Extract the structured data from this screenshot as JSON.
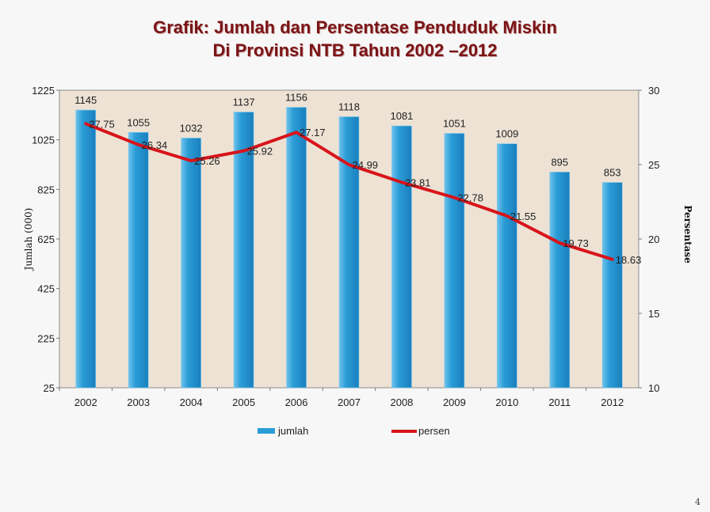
{
  "chart_data": {
    "type": "bar",
    "title_lines": [
      "Grafik: Jumlah dan Persentase  Penduduk Miskin",
      "Di Provinsi NTB Tahun 2002 –2012"
    ],
    "categories": [
      "2002",
      "2003",
      "2004",
      "2005",
      "2006",
      "2007",
      "2008",
      "2009",
      "2010",
      "2011",
      "2012"
    ],
    "series": [
      {
        "name": "jumlah",
        "type": "bar",
        "axis": "left",
        "values": [
          1145,
          1055,
          1032,
          1137,
          1156,
          1118,
          1081,
          1051,
          1009,
          895,
          853
        ],
        "labels": [
          "1145",
          "1055",
          "1032",
          "1137",
          "1156",
          "1118",
          "1081",
          "1051",
          "1009",
          "895",
          "853"
        ]
      },
      {
        "name": "persen",
        "type": "line",
        "axis": "right",
        "values": [
          27.75,
          26.34,
          25.26,
          25.92,
          27.17,
          24.99,
          23.81,
          22.78,
          21.55,
          19.73,
          18.63
        ],
        "labels": [
          "27.75",
          "26.34",
          "25.26",
          "25.92",
          "27.17",
          "24.99",
          "23.81",
          "22.78",
          "21.55",
          "19.73",
          "18.63"
        ]
      }
    ],
    "y_left": {
      "label": "Jumlah (000)",
      "min": 25,
      "max": 1225,
      "ticks": [
        25,
        225,
        425,
        625,
        825,
        1025,
        1225
      ],
      "tick_labels": [
        "25",
        "225",
        "425",
        "625",
        "825",
        "1025",
        "1225"
      ]
    },
    "y_right": {
      "label": "Persentase",
      "min": 10,
      "max": 30,
      "ticks": [
        10,
        15,
        20,
        25,
        30
      ],
      "tick_labels": [
        "10",
        "15",
        "20",
        "25",
        "30"
      ]
    },
    "legend_position": "bottom",
    "grid": false
  },
  "colors": {
    "bar": "#2a9cd6",
    "bar_edge": "#7cc8ee",
    "line": "#d8141a",
    "plot_bg": "#ede2d4",
    "title": "#7a1416"
  },
  "page_number": "4"
}
